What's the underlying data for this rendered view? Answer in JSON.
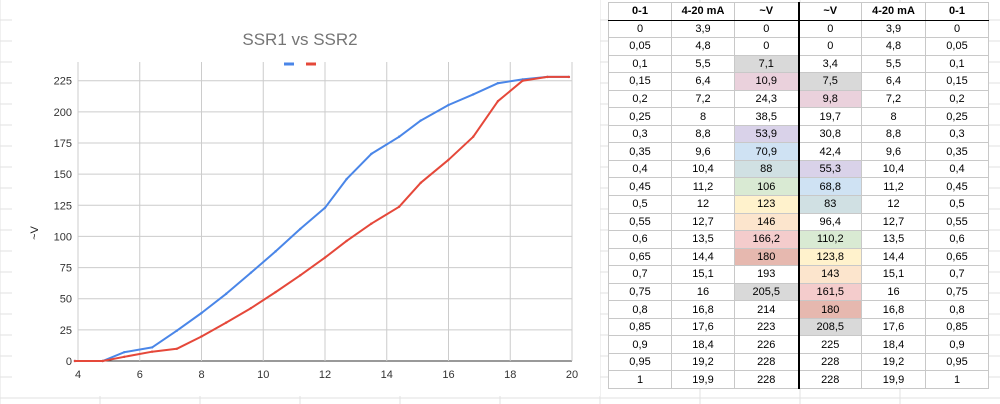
{
  "chart_data": {
    "type": "line",
    "title": "SSR1 vs SSR2",
    "xlabel": "",
    "ylabel": "~V",
    "xlim": [
      4,
      20
    ],
    "ylim": [
      0,
      240
    ],
    "xticks": [
      4,
      6,
      8,
      10,
      12,
      14,
      16,
      18,
      20
    ],
    "yticks": [
      0,
      25,
      50,
      75,
      100,
      125,
      150,
      175,
      200,
      225
    ],
    "x": [
      3.9,
      4.8,
      5.5,
      6.4,
      7.2,
      8,
      8.8,
      9.6,
      10.4,
      11.2,
      12,
      12.7,
      13.5,
      14.4,
      15.1,
      16,
      16.8,
      17.6,
      18.4,
      19.2,
      19.9
    ],
    "series": [
      {
        "name": "SSR1",
        "color": "#4a86e8",
        "values": [
          0,
          0,
          7.1,
          10.9,
          24.3,
          38.5,
          53.9,
          70.9,
          88,
          106,
          123,
          146,
          166.2,
          180,
          193,
          205.5,
          214,
          223,
          226,
          228,
          228
        ]
      },
      {
        "name": "SSR2",
        "color": "#e5483a",
        "values": [
          0,
          0,
          3.4,
          7.5,
          9.8,
          19.7,
          30.8,
          42.4,
          55.3,
          68.8,
          83,
          96.4,
          110.2,
          123.8,
          143,
          161.5,
          180,
          208.5,
          225,
          228,
          228
        ]
      }
    ],
    "legend": "top-center",
    "grid": true
  },
  "table": {
    "headers": [
      "0-1",
      "4-20 mA",
      "~V",
      "~V",
      "4-20 mA",
      "0-1"
    ],
    "rows": [
      [
        "0",
        "3,9",
        "0",
        "0",
        "3,9",
        "0"
      ],
      [
        "0,05",
        "4,8",
        "0",
        "0",
        "4,8",
        "0,05"
      ],
      [
        "0,1",
        "5,5",
        "7,1",
        "3,4",
        "5,5",
        "0,1"
      ],
      [
        "0,15",
        "6,4",
        "10,9",
        "7,5",
        "6,4",
        "0,15"
      ],
      [
        "0,2",
        "7,2",
        "24,3",
        "9,8",
        "7,2",
        "0,2"
      ],
      [
        "0,25",
        "8",
        "38,5",
        "19,7",
        "8",
        "0,25"
      ],
      [
        "0,3",
        "8,8",
        "53,9",
        "30,8",
        "8,8",
        "0,3"
      ],
      [
        "0,35",
        "9,6",
        "70,9",
        "42,4",
        "9,6",
        "0,35"
      ],
      [
        "0,4",
        "10,4",
        "88",
        "55,3",
        "10,4",
        "0,4"
      ],
      [
        "0,45",
        "11,2",
        "106",
        "68,8",
        "11,2",
        "0,45"
      ],
      [
        "0,5",
        "12",
        "123",
        "83",
        "12",
        "0,5"
      ],
      [
        "0,55",
        "12,7",
        "146",
        "96,4",
        "12,7",
        "0,55"
      ],
      [
        "0,6",
        "13,5",
        "166,2",
        "110,2",
        "13,5",
        "0,6"
      ],
      [
        "0,65",
        "14,4",
        "180",
        "123,8",
        "14,4",
        "0,65"
      ],
      [
        "0,7",
        "15,1",
        "193",
        "143",
        "15,1",
        "0,7"
      ],
      [
        "0,75",
        "16",
        "205,5",
        "161,5",
        "16",
        "0,75"
      ],
      [
        "0,8",
        "16,8",
        "214",
        "180",
        "16,8",
        "0,8"
      ],
      [
        "0,85",
        "17,6",
        "223",
        "208,5",
        "17,6",
        "0,85"
      ],
      [
        "0,9",
        "18,4",
        "226",
        "225",
        "18,4",
        "0,9"
      ],
      [
        "0,95",
        "19,2",
        "228",
        "228",
        "19,2",
        "0,95"
      ],
      [
        "1",
        "19,9",
        "228",
        "228",
        "19,9",
        "1"
      ]
    ],
    "ssr1_fills": [
      "",
      "",
      "#d9d9d9",
      "#ead1dc",
      "",
      "",
      "#d9d2e9",
      "#cfe2f3",
      "#d0e0e3",
      "#d9ead3",
      "#fff2cc",
      "#fce5cd",
      "#f4cccc",
      "#e6b8af",
      "",
      "#d9d9d9",
      "",
      "",
      "",
      "",
      ""
    ],
    "ssr2_fills": [
      "",
      "",
      "",
      "#d9d9d9",
      "#ead1dc",
      "",
      "",
      "",
      "#d9d2e9",
      "#cfe2f3",
      "#d0e0e3",
      "",
      "#d9ead3",
      "#fff2cc",
      "#fce5cd",
      "#f4cccc",
      "#e6b8af",
      "#d9d9d9",
      "",
      "",
      ""
    ]
  }
}
